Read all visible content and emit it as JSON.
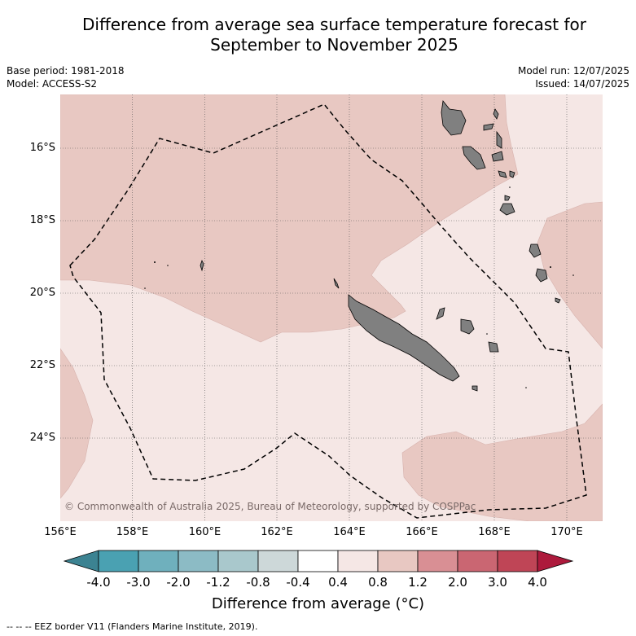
{
  "title_line1": "Difference from average sea surface temperature forecast for",
  "title_line2": "September to November 2025",
  "base_period": "Base period: 1981-2018",
  "model": "Model: ACCESS-S2",
  "model_run": "Model run: 12/07/2025",
  "issued": "Issued: 14/07/2025",
  "lat_labels": [
    "16°S",
    "18°S",
    "20°S",
    "22°S",
    "24°S"
  ],
  "lon_labels": [
    "156°E",
    "158°E",
    "160°E",
    "162°E",
    "164°E",
    "166°E",
    "168°E",
    "170°E"
  ],
  "colorbar": {
    "title": "Difference from average (°C)",
    "tick_labels": [
      "-4.0",
      "-3.0",
      "-2.0",
      "-1.2",
      "-0.8",
      "-0.4",
      "0.4",
      "0.8",
      "1.2",
      "2.0",
      "3.0",
      "4.0"
    ],
    "colors": [
      "#4aa1b2",
      "#6fb0bd",
      "#8cbbc5",
      "#a9c8cc",
      "#cdd8d9",
      "#ffffff",
      "#f5e7e5",
      "#e8c8c2",
      "#d98f94",
      "#ca6672",
      "#bf4556"
    ],
    "under_color": "#3c8392",
    "over_color": "#ad1a3c"
  },
  "map_fill_colors": {
    "range_0_4_to_0_8": "#f5e7e5",
    "range_0_8_to_1_2": "#e8c8c2",
    "land": "#808080"
  },
  "copyright": "© Commonwealth of Australia 2025, Bureau of Meteorology, supported by COSPPac",
  "footer": "--  --  -- EEZ border V11 (Flanders Marine Institute, 2019)."
}
